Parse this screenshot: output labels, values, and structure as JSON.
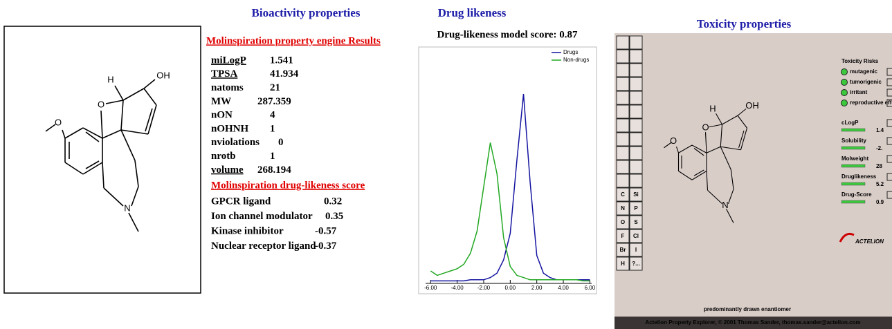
{
  "left_molecule": {
    "atoms": [
      "O",
      "O",
      "H",
      "OH",
      "N"
    ]
  },
  "bioactivity": {
    "title": "Bioactivity properties",
    "properties_heading": "Molinspiration property engine Results",
    "properties": [
      [
        "miLogP",
        1.541
      ],
      [
        "TPSA",
        41.934
      ],
      [
        "natoms",
        21
      ],
      [
        "MW",
        287.359
      ],
      [
        "nON",
        4
      ],
      [
        "nOHNH",
        1
      ],
      [
        "nviolations",
        0
      ],
      [
        "nrotb",
        1
      ],
      [
        "volume",
        268.194
      ]
    ],
    "druglikeness_heading": "Molinspiration drug-likeness score",
    "scores": [
      [
        "GPCR ligand",
        0.32
      ],
      [
        "Ion channel modulator",
        0.35
      ],
      [
        "Kinase inhibitor",
        -0.57
      ],
      [
        "Nuclear receptor ligand",
        -0.37
      ]
    ]
  },
  "chart_data": {
    "type": "line",
    "title": "Drug likeness",
    "subtitle": "Drug-likeness model score: 0.87",
    "x": [
      -6,
      -5.5,
      -5,
      -4.5,
      -4,
      -3.5,
      -3,
      -2.5,
      -2,
      -1.5,
      -1,
      -0.5,
      0,
      0.5,
      1,
      1.5,
      2,
      2.5,
      3,
      3.5,
      4,
      4.5,
      5,
      5.5,
      6
    ],
    "series": [
      {
        "name": "Drugs",
        "color": "#1414a0",
        "values": [
          0.5,
          0.5,
          0.5,
          0.5,
          0.5,
          0.5,
          1,
          1,
          1,
          2,
          4,
          10,
          22,
          55,
          85,
          45,
          12,
          4,
          2,
          1,
          1,
          1,
          1,
          1,
          1
        ]
      },
      {
        "name": "Non-drugs",
        "color": "#22a822",
        "values": [
          5,
          3,
          4,
          5,
          6,
          8,
          13,
          23,
          43,
          63,
          49,
          20,
          7,
          3,
          2,
          1,
          1,
          1,
          1,
          1,
          1,
          1,
          1,
          0.5,
          0.5
        ]
      }
    ],
    "xlim": [
      -6.9,
      6.5
    ],
    "ylim": [
      0,
      100
    ],
    "xticks": [
      {
        "value": -6,
        "label": "-6.00"
      },
      {
        "value": -4,
        "label": "-4.00"
      },
      {
        "value": -2,
        "label": "-2.00"
      },
      {
        "value": 0,
        "label": "0.00"
      },
      {
        "value": 2,
        "label": "2.00"
      },
      {
        "value": 4,
        "label": "4.00"
      },
      {
        "value": 6,
        "label": "6.00"
      }
    ],
    "legend": "upper right"
  },
  "toxicity": {
    "title": "Toxicity properties",
    "panel_heading": "Toxicity Risks",
    "risks": [
      "mutagenic",
      "tumorigenic",
      "irritant",
      "reproductive effective"
    ],
    "properties": [
      [
        "cLogP",
        "1.4"
      ],
      [
        "Solubility",
        "-2."
      ],
      [
        "Molweight",
        "28"
      ],
      [
        "Druglikeness",
        "5.2"
      ],
      [
        "Drug-Score",
        "0.9"
      ]
    ],
    "logo": "ACTELION",
    "toolbar": [
      "C",
      "Si",
      "N",
      "P",
      "O",
      "S",
      "F",
      "Cl",
      "Br",
      "I",
      "H",
      "?..."
    ],
    "atoms": [
      "O",
      "O",
      "H",
      "OH",
      "N"
    ],
    "note": "predominantly drawn enantiomer",
    "footer": "Actelion Property Explorer, © 2001 Thomas Sander, thomas.sander@actelion.com"
  }
}
